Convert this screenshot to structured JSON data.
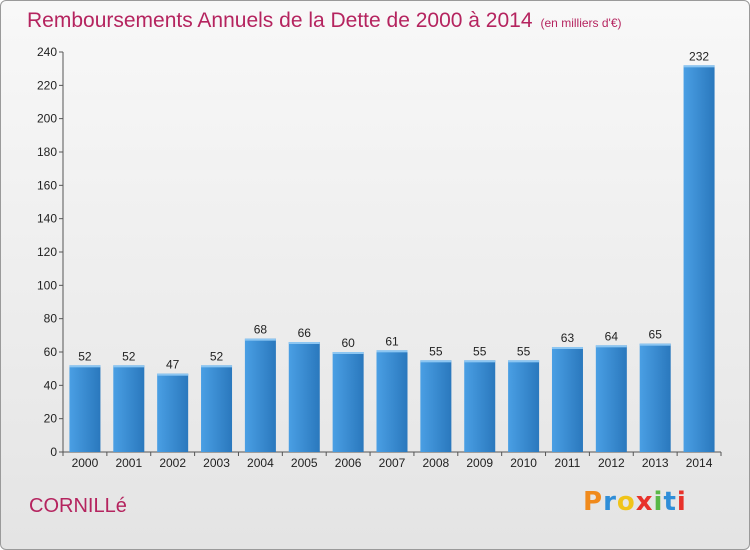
{
  "header": {
    "title": "Remboursements Annuels de la Dette de 2000 à 2014",
    "unit": "(en milliers d'€)"
  },
  "footer": {
    "commune": "CORNILLé",
    "logo": [
      "P",
      "r",
      "o",
      "x",
      "i",
      "t",
      "i"
    ],
    "logo_colors": [
      "#f08a1c",
      "#2f8ed8",
      "#f0c419",
      "#e8322b",
      "#59b847",
      "#2f8ed8",
      "#e8322b"
    ]
  },
  "chart_data": {
    "type": "bar",
    "title": "Remboursements Annuels de la Dette de 2000 à 2014",
    "xlabel": "",
    "ylabel": "",
    "categories": [
      "2000",
      "2001",
      "2002",
      "2003",
      "2004",
      "2005",
      "2006",
      "2007",
      "2008",
      "2009",
      "2010",
      "2011",
      "2012",
      "2013",
      "2014"
    ],
    "values": [
      52,
      52,
      47,
      52,
      68,
      66,
      60,
      61,
      55,
      55,
      55,
      63,
      64,
      65,
      232
    ],
    "ylim": [
      0,
      240
    ],
    "yticks": [
      "0",
      "20",
      "40",
      "60",
      "80",
      "100",
      "120",
      "140",
      "160",
      "180",
      "200",
      "220",
      "240"
    ],
    "grid": false,
    "bar_color": "#3a8fd8"
  }
}
